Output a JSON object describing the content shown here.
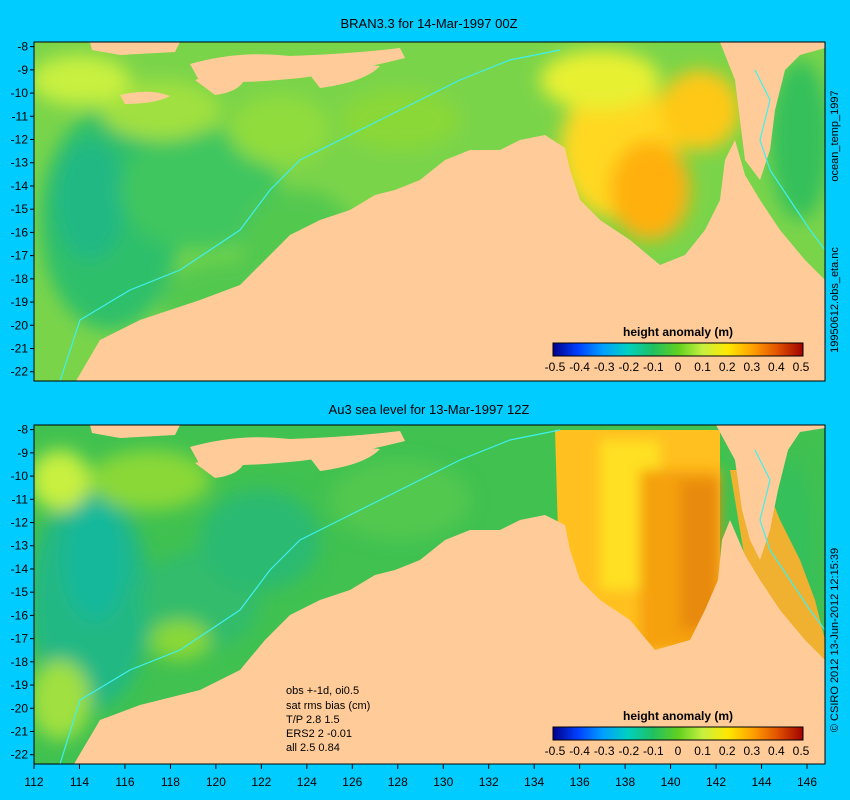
{
  "top_panel": {
    "title": "BRAN3.3 for 14-Mar-1997 00Z",
    "y_ticks": [
      "-8",
      "-9",
      "-10",
      "-11",
      "-12",
      "-13",
      "-14",
      "-15",
      "-16",
      "-17",
      "-18",
      "-19",
      "-20",
      "-21",
      "-22"
    ],
    "colorbar": {
      "label": "height anomaly (m)",
      "ticks": [
        "-0.5",
        "-0.4",
        "-0.3",
        "-0.2",
        "-0.1",
        "0",
        "0.1",
        "0.2",
        "0.3",
        "0.4",
        "0.5"
      ]
    }
  },
  "bottom_panel": {
    "title": "Au3 sea level  for 13-Mar-1997 12Z",
    "y_ticks": [
      "-8",
      "-9",
      "-10",
      "-11",
      "-12",
      "-13",
      "-14",
      "-15",
      "-16",
      "-17",
      "-18",
      "-19",
      "-20",
      "-21",
      "-22"
    ],
    "colorbar": {
      "label": "height anomaly (m)",
      "ticks": [
        "-0.5",
        "-0.4",
        "-0.3",
        "-0.2",
        "-0.1",
        "0",
        "0.1",
        "0.2",
        "0.3",
        "0.4",
        "0.5"
      ]
    },
    "stats_lines": [
      "obs +-1d, oi0.5",
      "sat rms bias (cm)",
      "T/P  2.8 1.5",
      "ERS2 2 -0.01",
      "all 2.5 0.84"
    ]
  },
  "x_ticks": [
    "112",
    "114",
    "116",
    "118",
    "120",
    "122",
    "124",
    "126",
    "128",
    "130",
    "132",
    "134",
    "136",
    "138",
    "140",
    "142",
    "144",
    "146"
  ],
  "side_labels": {
    "top1": "ocean_temp_1997",
    "top2": "19950612.obs_eta.nc",
    "bottom": "© CSIRO 2012  13-Jun-2012 12:15:39"
  },
  "colors": {
    "background": "#00ccff",
    "land": "#ffcc99",
    "colormap": [
      "#00008c",
      "#0040ff",
      "#00a0ff",
      "#00d0c0",
      "#20c060",
      "#60d020",
      "#c8f040",
      "#ffe800",
      "#ffa000",
      "#e05000",
      "#a00000"
    ]
  }
}
